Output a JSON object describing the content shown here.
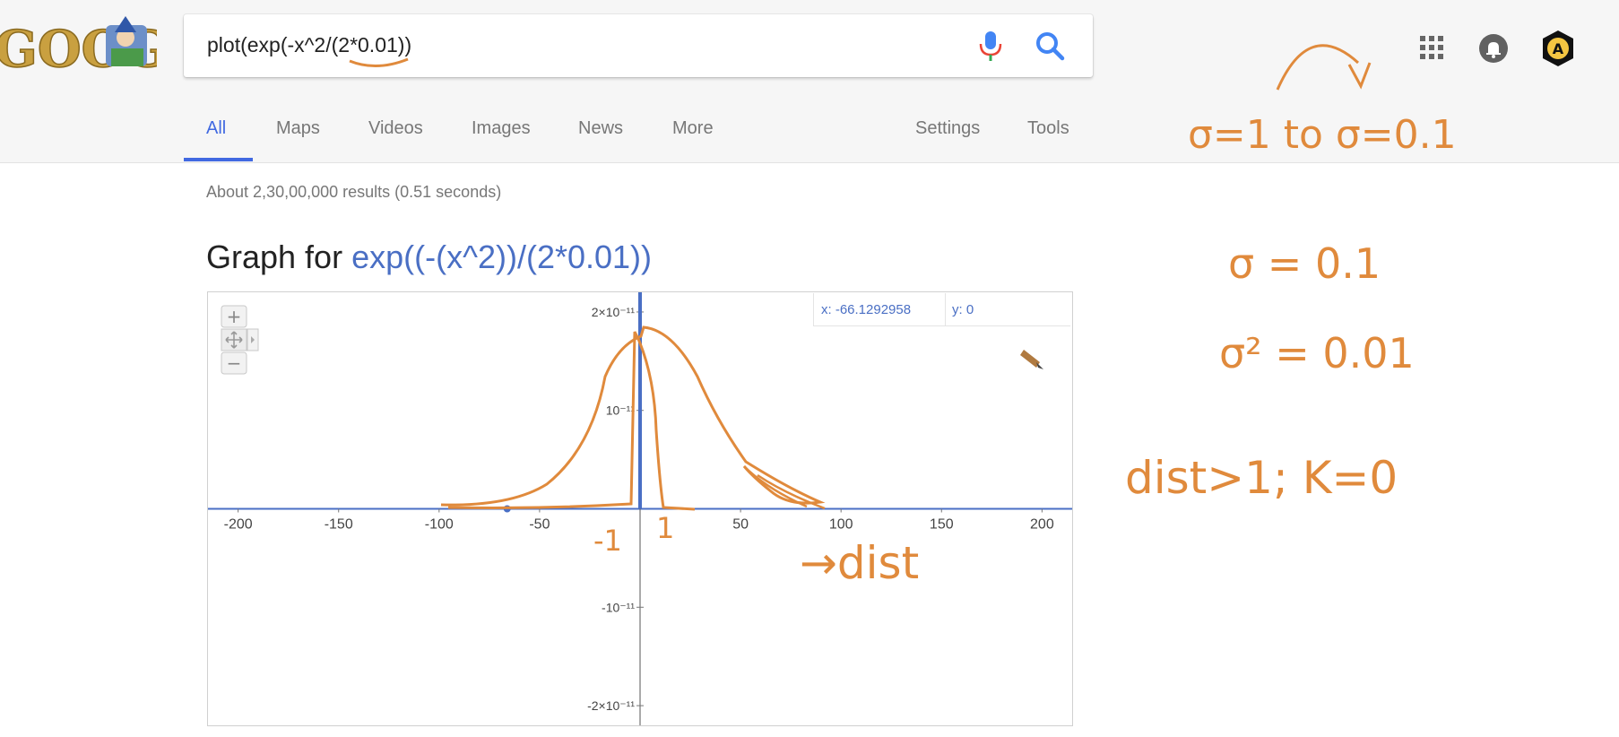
{
  "search": {
    "query": "plot(exp(-x^2/(2*0.01))"
  },
  "tabs": [
    {
      "label": "All"
    },
    {
      "label": "Maps"
    },
    {
      "label": "Videos"
    },
    {
      "label": "Images"
    },
    {
      "label": "News"
    },
    {
      "label": "More"
    },
    {
      "label": "Settings"
    },
    {
      "label": "Tools"
    }
  ],
  "results": {
    "stats": "About 2,30,00,000 results (0.51 seconds)"
  },
  "graph": {
    "title_prefix": "Graph for ",
    "expression": "exp((-(x^2))/(2*0.01))",
    "readout": {
      "x": "x: -66.1292958",
      "y": "y: 0"
    },
    "zoom_in": "+",
    "zoom_out": "−"
  },
  "chart_data": {
    "type": "line",
    "function": "exp((-(x^2))/(2*0.01))",
    "xlim": [
      -215,
      215
    ],
    "ylim": [
      -2.2e-11,
      2.2e-11
    ],
    "x_ticks": [
      -200,
      -150,
      -100,
      -50,
      50,
      100,
      150,
      200
    ],
    "x_tick_labels": [
      "-200",
      "-150",
      "-100",
      "-50",
      "50",
      "100",
      "150",
      "200"
    ],
    "y_ticks": [
      2e-11,
      1e-11,
      -1e-11,
      -2e-11
    ],
    "y_tick_labels": [
      "2×10⁻¹¹",
      "10⁻¹¹",
      "-10⁻¹¹",
      "-2×10⁻¹¹"
    ],
    "grid": false,
    "line_color": "#4a6fc4"
  },
  "annotations": {
    "sigma_change": "σ=1  to  σ=0.1",
    "sigma_value": "σ = 0.1",
    "sigma_squared": "σ² = 0.01",
    "dist_rule": "dist>1;  K=0",
    "minus_one": "-1",
    "plus_one": "1",
    "dist_arrow": "→dist"
  },
  "colors": {
    "accent": "#4169e1",
    "link": "#4a6fc4",
    "ink": "#e08a3c"
  },
  "icons": [
    "doodle-logo",
    "mic-icon",
    "search-icon",
    "apps-grid-icon",
    "notifications-icon",
    "account-avatar-icon",
    "pan-icon"
  ]
}
